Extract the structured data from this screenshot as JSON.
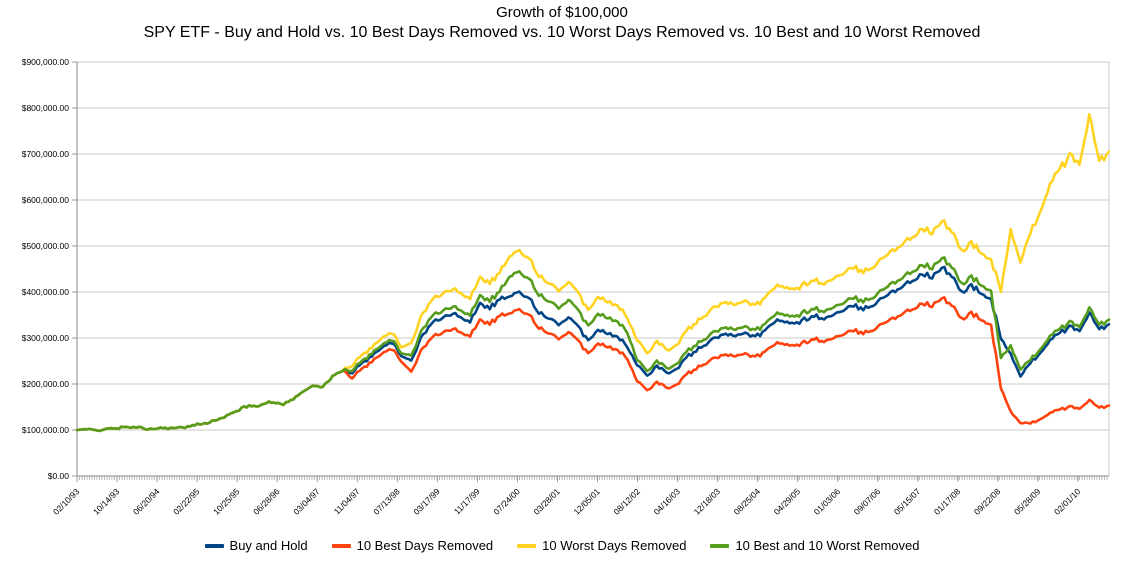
{
  "header": {
    "title": "Growth of $100,000",
    "subtitle": "SPY ETF - Buy and Hold vs. 10 Best Days Removed vs. 10 Worst Days Removed vs. 10 Best and 10 Worst Removed"
  },
  "chart_data": {
    "type": "line",
    "title": "Growth of $100,000",
    "subtitle": "SPY ETF - Buy and Hold vs. 10 Best Days Removed vs. 10 Worst Days Removed vs. 10 Best and 10 Worst Removed",
    "grid": true,
    "legend_position": "bottom",
    "ylim": [
      0,
      900000
    ],
    "ytick_step": 100000,
    "ytick_labels": [
      "$0.00",
      "$100,000.00",
      "$200,000.00",
      "$300,000.00",
      "$400,000.00",
      "$500,000.00",
      "$600,000.00",
      "$700,000.00",
      "$800,000.00",
      "$900,000.00"
    ],
    "xtick_labels": [
      "02/10/93",
      "10/14/93",
      "06/20/94",
      "02/22/95",
      "10/25/95",
      "06/28/96",
      "03/04/97",
      "11/04/97",
      "07/13/98",
      "03/17/99",
      "11/17/99",
      "07/24/00",
      "03/28/01",
      "12/05/01",
      "08/12/02",
      "04/16/03",
      "12/18/03",
      "08/25/04",
      "04/29/05",
      "01/03/06",
      "09/07/06",
      "05/15/07",
      "01/17/08",
      "09/22/08",
      "05/28/09",
      "02/01/10"
    ],
    "x_axis_note": "samples every 2 months from 02/1993 (month 0) to 08/2010 (month 210); tick labels spaced ~8.15 months apart",
    "x_start_month": 0,
    "x_step_months": 2,
    "x_total_months": 210,
    "xtick_interval_months": 8.148,
    "series": [
      {
        "name": "Buy and Hold",
        "color": "#004586",
        "values": [
          100000,
          101000,
          100000,
          102000,
          104000,
          106000,
          106000,
          102000,
          103000,
          105000,
          104000,
          105000,
          111000,
          115000,
          121000,
          127000,
          140000,
          150000,
          153000,
          157000,
          160000,
          156000,
          167000,
          183000,
          198000,
          192000,
          216000,
          230000,
          222000,
          247000,
          260000,
          280000,
          290000,
          260000,
          252000,
          300000,
          330000,
          342000,
          350000,
          348000,
          335000,
          378000,
          365000,
          385000,
          390000,
          400000,
          385000,
          355000,
          340000,
          330000,
          345000,
          325000,
          295000,
          320000,
          310000,
          305000,
          280000,
          240000,
          220000,
          240000,
          225000,
          232000,
          258000,
          272000,
          285000,
          303000,
          310000,
          305000,
          312000,
          303000,
          315000,
          336000,
          335000,
          330000,
          342000,
          348000,
          340000,
          352000,
          358000,
          370000,
          362000,
          372000,
          388000,
          404000,
          410000,
          425000,
          440000,
          430000,
          452000,
          435000,
          400000,
          415000,
          395000,
          385000,
          300000,
          265000,
          215000,
          245000,
          268000,
          295000,
          310000,
          325000,
          315000,
          355000,
          318000,
          330000
        ]
      },
      {
        "name": "10 Best Days Removed",
        "color": "#FF420E",
        "values": [
          100000,
          101000,
          100000,
          102000,
          104000,
          106000,
          106000,
          102000,
          103000,
          105000,
          104000,
          105000,
          111000,
          115000,
          121000,
          127000,
          140000,
          150000,
          153000,
          157000,
          160000,
          156000,
          167000,
          183000,
          198000,
          192000,
          216000,
          230000,
          211000,
          235000,
          248000,
          267000,
          276000,
          248000,
          228000,
          272000,
          299000,
          310000,
          317000,
          315000,
          304000,
          342000,
          331000,
          349000,
          353000,
          362000,
          349000,
          322000,
          308000,
          299000,
          313000,
          294000,
          267000,
          290000,
          281000,
          276000,
          254000,
          205000,
          188000,
          205000,
          192000,
          198000,
          221000,
          233000,
          244000,
          259000,
          265000,
          261000,
          267000,
          259000,
          269000,
          287000,
          286000,
          282000,
          292000,
          298000,
          291000,
          301000,
          306000,
          316000,
          310000,
          318000,
          332000,
          345000,
          351000,
          363000,
          376000,
          368000,
          386000,
          372000,
          342000,
          355000,
          338000,
          329000,
          192000,
          140000,
          114000,
          114000,
          124000,
          137000,
          144000,
          151000,
          146000,
          165000,
          148000,
          153000
        ]
      },
      {
        "name": "10 Worst Days Removed",
        "color": "#FFD320",
        "values": [
          100000,
          101000,
          100000,
          102000,
          104000,
          106000,
          106000,
          102000,
          103000,
          105000,
          104000,
          105000,
          111000,
          115000,
          121000,
          127000,
          140000,
          150000,
          153000,
          157000,
          160000,
          156000,
          167000,
          183000,
          198000,
          192000,
          216000,
          230000,
          238000,
          265000,
          279000,
          301000,
          311000,
          279000,
          290000,
          346000,
          380000,
          394000,
          403000,
          401000,
          386000,
          435000,
          420000,
          443000,
          477000,
          490000,
          471000,
          435000,
          416000,
          404000,
          422000,
          398000,
          361000,
          392000,
          379000,
          373000,
          343000,
          294000,
          269000,
          294000,
          275000,
          284000,
          316000,
          333000,
          349000,
          371000,
          379000,
          373000,
          382000,
          371000,
          386000,
          411000,
          410000,
          404000,
          419000,
          426000,
          416000,
          431000,
          438000,
          453000,
          443000,
          455000,
          475000,
          494000,
          502000,
          520000,
          539000,
          526000,
          553000,
          532000,
          490000,
          508000,
          483000,
          471000,
          403000,
          535000,
          462000,
          527000,
          576000,
          634000,
          666000,
          698000,
          677000,
          785000,
          683000,
          705000
        ]
      },
      {
        "name": "10 Best and 10 Worst Removed",
        "color": "#579D1C",
        "values": [
          100000,
          101000,
          100000,
          102000,
          104000,
          106000,
          106000,
          102000,
          103000,
          105000,
          104000,
          105000,
          111000,
          115000,
          121000,
          127000,
          140000,
          150000,
          153000,
          157000,
          160000,
          156000,
          167000,
          183000,
          198000,
          192000,
          216000,
          230000,
          227000,
          252000,
          266000,
          286000,
          296000,
          266000,
          263000,
          313000,
          345000,
          357000,
          365000,
          363000,
          350000,
          395000,
          381000,
          402000,
          433000,
          444000,
          427000,
          394000,
          377000,
          366000,
          383000,
          360000,
          327000,
          355000,
          344000,
          338000,
          311000,
          251000,
          230000,
          251000,
          235000,
          243000,
          270000,
          285000,
          298000,
          317000,
          324000,
          319000,
          326000,
          317000,
          329000,
          351000,
          350000,
          345000,
          358000,
          364000,
          356000,
          368000,
          374000,
          387000,
          379000,
          389000,
          406000,
          423000,
          429000,
          445000,
          460000,
          450000,
          473000,
          455000,
          418000,
          434000,
          413000,
          403000,
          258000,
          283000,
          230000,
          252000,
          276000,
          304000,
          319000,
          335000,
          324000,
          366000,
          328000,
          340000
        ]
      }
    ],
    "legend": [
      "Buy and Hold",
      "10 Best Days Removed",
      "10 Worst Days Removed",
      "10 Best and 10 Worst Removed"
    ]
  },
  "colors": {
    "buy_and_hold": "#004586",
    "best_removed": "#FF420E",
    "worst_removed": "#FFD320",
    "best_and_worst_removed": "#579D1C",
    "gridline": "#C8C8C8",
    "axis": "#9B9B9B",
    "background": "#FFFFFF",
    "text": "#000000"
  }
}
